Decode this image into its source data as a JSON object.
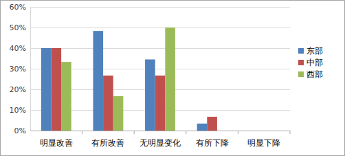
{
  "chart_data": {
    "type": "bar",
    "categories": [
      "明显改善",
      "有所改善",
      "无明显变化",
      "有所下降",
      "明显下降"
    ],
    "series": [
      {
        "name": "东部",
        "color": "#4f81bd",
        "values": [
          40,
          48.3,
          34.5,
          3.4,
          0
        ]
      },
      {
        "name": "中部",
        "color": "#c0504d",
        "values": [
          40,
          26.7,
          26.7,
          6.7,
          0
        ]
      },
      {
        "name": "西部",
        "color": "#9bbb59",
        "values": [
          33.3,
          16.7,
          50,
          0,
          0
        ]
      }
    ],
    "ylim": [
      0,
      60
    ],
    "yticks": [
      {
        "value": 0,
        "label": "0%"
      },
      {
        "value": 10,
        "label": "10%"
      },
      {
        "value": 20,
        "label": "20%"
      },
      {
        "value": 30,
        "label": "30%"
      },
      {
        "value": 40,
        "label": "40%"
      },
      {
        "value": 50,
        "label": "50%"
      },
      {
        "value": 60,
        "label": "60%"
      }
    ],
    "grid": true,
    "legend": "right"
  }
}
